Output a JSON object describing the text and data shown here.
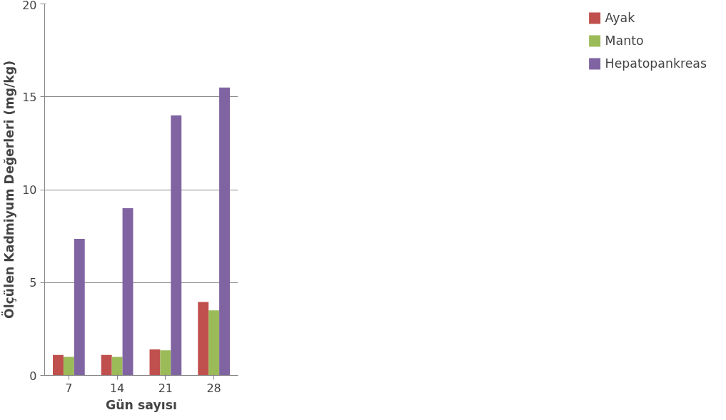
{
  "chart_data": {
    "type": "bar",
    "xlabel": "Gün sayısı",
    "ylabel": "Ölçülen Kadmiyum Değerleri (mg/kg)",
    "categories": [
      "7",
      "14",
      "21",
      "28"
    ],
    "series": [
      {
        "name": "Ayak",
        "color": "#c0504d",
        "values": [
          1.1,
          1.1,
          1.4,
          3.95
        ]
      },
      {
        "name": "Manto",
        "color": "#9bbb59",
        "values": [
          1.0,
          1.0,
          1.35,
          3.5
        ]
      },
      {
        "name": "Hepatopankreas",
        "color": "#8064a2",
        "values": [
          7.35,
          9.0,
          14.0,
          15.5
        ]
      }
    ],
    "ylim": [
      0,
      20
    ],
    "yticks": [
      0,
      5,
      10,
      15,
      20
    ],
    "grid": "y",
    "legend": "right"
  }
}
